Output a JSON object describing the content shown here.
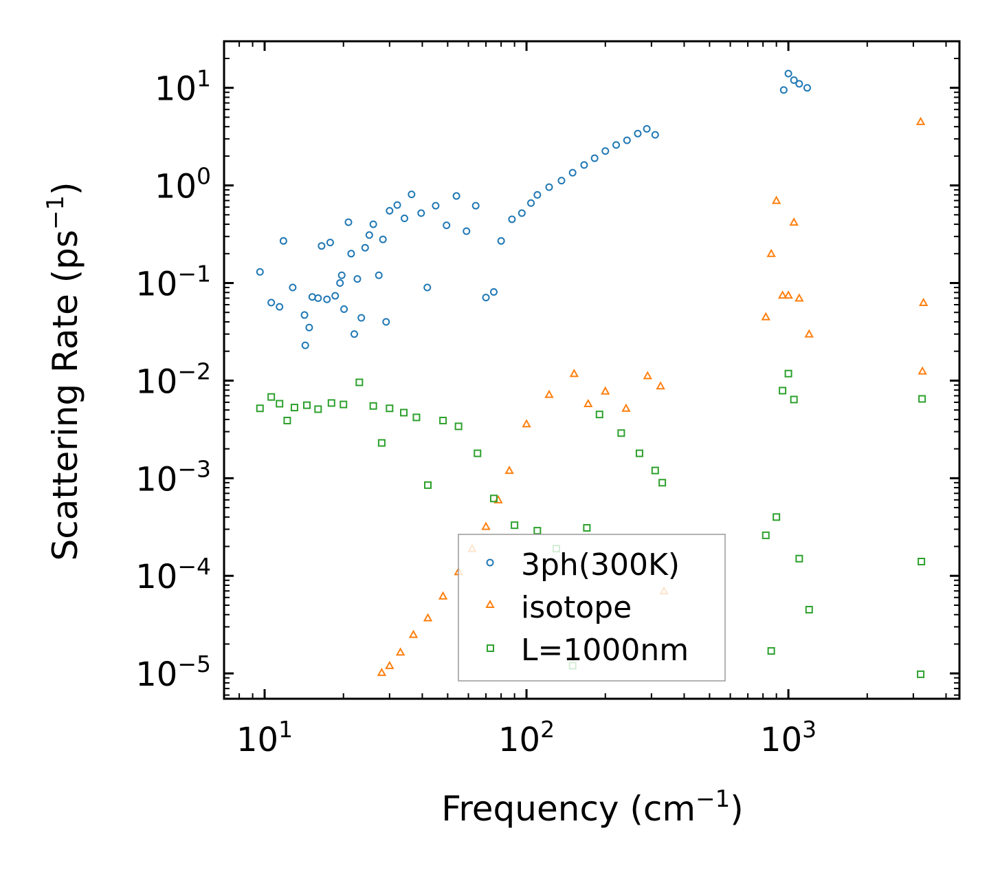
{
  "chart_data": {
    "type": "scatter",
    "x_scale": "log",
    "y_scale": "log",
    "xlabel": "Frequency (cm",
    "xlabel_sup": "−1",
    "xlabel_tail": ")",
    "ylabel": "Scattering Rate (ps",
    "ylabel_sup": "−1",
    "ylabel_tail": ")",
    "xlim": [
      7,
      4500
    ],
    "ylim": [
      5.5e-06,
      30
    ],
    "x_ticks": [
      {
        "value": 10,
        "base": "10",
        "exp": "1"
      },
      {
        "value": 100,
        "base": "10",
        "exp": "2"
      },
      {
        "value": 1000,
        "base": "10",
        "exp": "3"
      }
    ],
    "y_ticks": [
      {
        "value": 1e-05,
        "base": "10",
        "exp": "−5"
      },
      {
        "value": 0.0001,
        "base": "10",
        "exp": "−4"
      },
      {
        "value": 0.001,
        "base": "10",
        "exp": "−3"
      },
      {
        "value": 0.01,
        "base": "10",
        "exp": "−2"
      },
      {
        "value": 0.1,
        "base": "10",
        "exp": "−1"
      },
      {
        "value": 1,
        "base": "10",
        "exp": "0"
      },
      {
        "value": 10,
        "base": "10",
        "exp": "1"
      }
    ],
    "legend_position": "lower-center",
    "series": [
      {
        "name": "3ph(300K)",
        "color": "#1f77b4",
        "marker": "circle",
        "points": [
          [
            9.6,
            0.13
          ],
          [
            10.6,
            0.063
          ],
          [
            11.4,
            0.057
          ],
          [
            11.8,
            0.27
          ],
          [
            12.8,
            0.09
          ],
          [
            14.2,
            0.047
          ],
          [
            14.3,
            0.023
          ],
          [
            14.8,
            0.035
          ],
          [
            15.2,
            0.072
          ],
          [
            16,
            0.07
          ],
          [
            16.5,
            0.24
          ],
          [
            17.3,
            0.068
          ],
          [
            17.8,
            0.26
          ],
          [
            18.6,
            0.074
          ],
          [
            19.4,
            0.1
          ],
          [
            19.7,
            0.12
          ],
          [
            20.1,
            0.054
          ],
          [
            20.9,
            0.42
          ],
          [
            21.4,
            0.2
          ],
          [
            22,
            0.03
          ],
          [
            22.6,
            0.11
          ],
          [
            23.4,
            0.044
          ],
          [
            24.2,
            0.23
          ],
          [
            25.1,
            0.31
          ],
          [
            26,
            0.4
          ],
          [
            27.3,
            0.12
          ],
          [
            28.3,
            0.28
          ],
          [
            29.1,
            0.04
          ],
          [
            30,
            0.55
          ],
          [
            32.1,
            0.63
          ],
          [
            34.2,
            0.46
          ],
          [
            36.4,
            0.81
          ],
          [
            39.6,
            0.52
          ],
          [
            41.8,
            0.09
          ],
          [
            45,
            0.62
          ],
          [
            49.5,
            0.39
          ],
          [
            54,
            0.78
          ],
          [
            59,
            0.34
          ],
          [
            64,
            0.62
          ],
          [
            70,
            0.071
          ],
          [
            75,
            0.081
          ],
          [
            80,
            0.27
          ],
          [
            88,
            0.45
          ],
          [
            96,
            0.52
          ],
          [
            104,
            0.66
          ],
          [
            110,
            0.8
          ],
          [
            122,
            0.96
          ],
          [
            136,
            1.12
          ],
          [
            150,
            1.35
          ],
          [
            166,
            1.62
          ],
          [
            182,
            1.9
          ],
          [
            200,
            2.25
          ],
          [
            220,
            2.6
          ],
          [
            242,
            2.9
          ],
          [
            266,
            3.4
          ],
          [
            288,
            3.8
          ],
          [
            310,
            3.3
          ],
          [
            960,
            9.5
          ],
          [
            1000,
            14
          ],
          [
            1050,
            12
          ],
          [
            1100,
            11
          ],
          [
            1180,
            10
          ]
        ]
      },
      {
        "name": "isotope",
        "color": "#ff7f0e",
        "marker": "triangle",
        "points": [
          [
            28,
            1.02e-05
          ],
          [
            30,
            1.2e-05
          ],
          [
            33,
            1.65e-05
          ],
          [
            37,
            2.5e-05
          ],
          [
            42,
            3.7e-05
          ],
          [
            48,
            6.2e-05
          ],
          [
            55,
            0.00011
          ],
          [
            62,
            0.00019
          ],
          [
            70,
            0.00032
          ],
          [
            78,
            0.0006
          ],
          [
            86,
            0.0012
          ],
          [
            100,
            0.0036
          ],
          [
            122,
            0.0072
          ],
          [
            152,
            0.0118
          ],
          [
            172,
            0.0058
          ],
          [
            200,
            0.0078
          ],
          [
            240,
            0.0052
          ],
          [
            290,
            0.0112
          ],
          [
            325,
            0.0088
          ],
          [
            335,
            7e-05
          ],
          [
            820,
            0.045
          ],
          [
            860,
            0.2
          ],
          [
            900,
            0.7
          ],
          [
            950,
            0.075
          ],
          [
            1000,
            0.075
          ],
          [
            1050,
            0.42
          ],
          [
            1100,
            0.07
          ],
          [
            1200,
            0.03
          ],
          [
            3200,
            4.5
          ],
          [
            3250,
            0.0125
          ],
          [
            3280,
            0.063
          ]
        ]
      },
      {
        "name": "L=1000nm",
        "color": "#2ca02c",
        "marker": "square",
        "points": [
          [
            9.6,
            0.0052
          ],
          [
            10.6,
            0.0068
          ],
          [
            11.4,
            0.0058
          ],
          [
            12.2,
            0.0039
          ],
          [
            13,
            0.0053
          ],
          [
            14.5,
            0.0056
          ],
          [
            16,
            0.0051
          ],
          [
            18,
            0.0059
          ],
          [
            20,
            0.0057
          ],
          [
            23,
            0.0096
          ],
          [
            26,
            0.0055
          ],
          [
            28,
            0.0023
          ],
          [
            30,
            0.0052
          ],
          [
            34,
            0.0047
          ],
          [
            38,
            0.0042
          ],
          [
            42,
            0.00085
          ],
          [
            48,
            0.0039
          ],
          [
            55,
            0.0034
          ],
          [
            65,
            0.0018
          ],
          [
            75,
            0.00062
          ],
          [
            90,
            0.00033
          ],
          [
            110,
            0.00029
          ],
          [
            130,
            0.00019
          ],
          [
            150,
            1.2e-05
          ],
          [
            170,
            0.00031
          ],
          [
            190,
            0.0045
          ],
          [
            230,
            0.0029
          ],
          [
            270,
            0.0018
          ],
          [
            310,
            0.0012
          ],
          [
            330,
            0.0009
          ],
          [
            820,
            0.00026
          ],
          [
            860,
            1.7e-05
          ],
          [
            900,
            0.0004
          ],
          [
            950,
            0.0079
          ],
          [
            1000,
            0.0118
          ],
          [
            1050,
            0.0064
          ],
          [
            1100,
            0.00015
          ],
          [
            1200,
            4.5e-05
          ],
          [
            3200,
            9.8e-06
          ],
          [
            3220,
            0.00014
          ],
          [
            3240,
            0.0065
          ]
        ]
      }
    ]
  }
}
